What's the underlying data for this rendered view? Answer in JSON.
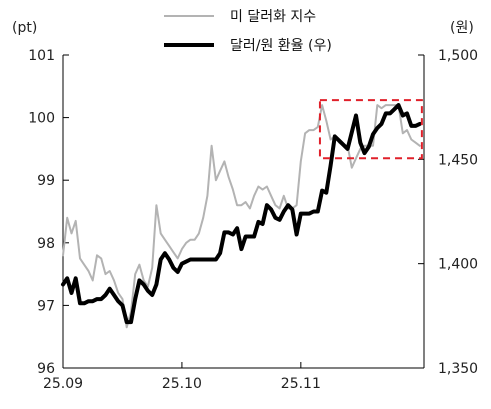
{
  "chart_data": {
    "type": "line",
    "title": "",
    "left_unit": "(pt)",
    "right_unit": "(원)",
    "left_axis": {
      "ylim": [
        96,
        101
      ],
      "ticks": [
        96,
        97,
        98,
        99,
        100,
        101
      ]
    },
    "right_axis": {
      "ylim": [
        1350,
        1500
      ],
      "ticks": [
        1350,
        1400,
        1450,
        1500
      ],
      "tick_labels": [
        "1,350",
        "1,400",
        "1,450",
        "1,500"
      ]
    },
    "x_axis": {
      "range": [
        0,
        85
      ],
      "ticks": [
        0,
        28,
        56
      ],
      "tick_labels": [
        "25.09",
        "25.10",
        "25.11"
      ]
    },
    "grid": false,
    "legend_position": "top-center",
    "series": [
      {
        "name": "미 달러화 지수",
        "axis": "left",
        "color": "#b3b3b3",
        "width": 2,
        "x": [
          0,
          1,
          2,
          3,
          4,
          5,
          6,
          7,
          8,
          9,
          10,
          11,
          12,
          13,
          14,
          15,
          16,
          17,
          18,
          19,
          20,
          21,
          22,
          23,
          24,
          25,
          26,
          27,
          28,
          29,
          30,
          31,
          32,
          33,
          34,
          35,
          36,
          37,
          38,
          39,
          40,
          41,
          42,
          43,
          44,
          45,
          46,
          47,
          48,
          49,
          50,
          51,
          52,
          53,
          54,
          55,
          56,
          57,
          58,
          59,
          60,
          61,
          62,
          63,
          64,
          65,
          66,
          67,
          68,
          69,
          70,
          71,
          72,
          73,
          74,
          75,
          76,
          77,
          78,
          79,
          80,
          81,
          82,
          83,
          84
        ],
        "values": [
          97.8,
          98.4,
          98.15,
          98.35,
          97.75,
          97.65,
          97.55,
          97.4,
          97.8,
          97.75,
          97.5,
          97.55,
          97.4,
          97.2,
          97.1,
          96.65,
          96.9,
          97.5,
          97.65,
          97.4,
          97.3,
          97.6,
          98.6,
          98.15,
          98.05,
          97.95,
          97.85,
          97.75,
          97.9,
          98.0,
          98.05,
          98.05,
          98.15,
          98.4,
          98.75,
          99.55,
          99.0,
          99.15,
          99.3,
          99.05,
          98.85,
          98.6,
          98.6,
          98.65,
          98.55,
          98.75,
          98.9,
          98.85,
          98.9,
          98.75,
          98.6,
          98.55,
          98.75,
          98.55,
          98.55,
          98.6,
          99.3,
          99.75,
          99.8,
          99.8,
          99.85,
          100.2,
          99.95,
          99.65,
          99.7,
          99.6,
          99.55,
          99.55,
          99.2,
          99.35,
          99.5,
          99.55,
          99.55,
          99.55,
          100.2,
          100.15,
          100.2,
          100.2,
          100.2,
          100.2,
          99.75,
          99.8,
          99.65,
          99.6,
          99.55
        ]
      },
      {
        "name": "달러/원 환율 (우)",
        "axis": "right",
        "color": "#000000",
        "width": 4,
        "x": [
          0,
          1,
          2,
          3,
          4,
          5,
          6,
          7,
          8,
          9,
          10,
          11,
          12,
          13,
          14,
          15,
          16,
          17,
          18,
          19,
          20,
          21,
          22,
          23,
          24,
          25,
          26,
          27,
          28,
          29,
          30,
          31,
          32,
          33,
          34,
          35,
          36,
          37,
          38,
          39,
          40,
          41,
          42,
          43,
          44,
          45,
          46,
          47,
          48,
          49,
          50,
          51,
          52,
          53,
          54,
          55,
          56,
          57,
          58,
          59,
          60,
          61,
          62,
          63,
          64,
          65,
          66,
          67,
          68,
          69,
          70,
          71,
          72,
          73,
          74,
          75,
          76,
          77,
          78,
          79,
          80,
          81,
          82,
          83,
          84
        ],
        "values": [
          1390,
          1393,
          1386,
          1393,
          1381,
          1381,
          1382,
          1382,
          1383,
          1383,
          1385,
          1388,
          1385,
          1382,
          1380,
          1372,
          1372,
          1383,
          1392,
          1390,
          1387,
          1385,
          1390,
          1402,
          1405,
          1402,
          1398,
          1396,
          1400,
          1401,
          1402,
          1402,
          1402,
          1402,
          1402,
          1402,
          1402,
          1405,
          1415,
          1415,
          1414,
          1417,
          1407,
          1413,
          1413,
          1413,
          1420,
          1419,
          1428,
          1426,
          1422,
          1421,
          1425,
          1428,
          1426,
          1414,
          1424,
          1424,
          1424,
          1425,
          1425,
          1435,
          1434,
          1447,
          1461,
          1459,
          1457,
          1455,
          1463,
          1471,
          1458,
          1453,
          1456,
          1462,
          1465,
          1467,
          1472,
          1472,
          1474,
          1476,
          1471,
          1472,
          1466,
          1466,
          1467
        ]
      }
    ],
    "annotations": [
      {
        "type": "dashed-box",
        "color": "#e0202a",
        "x_range": [
          60.5,
          84.5
        ],
        "y_range_left": [
          99.35,
          100.28
        ]
      }
    ]
  }
}
